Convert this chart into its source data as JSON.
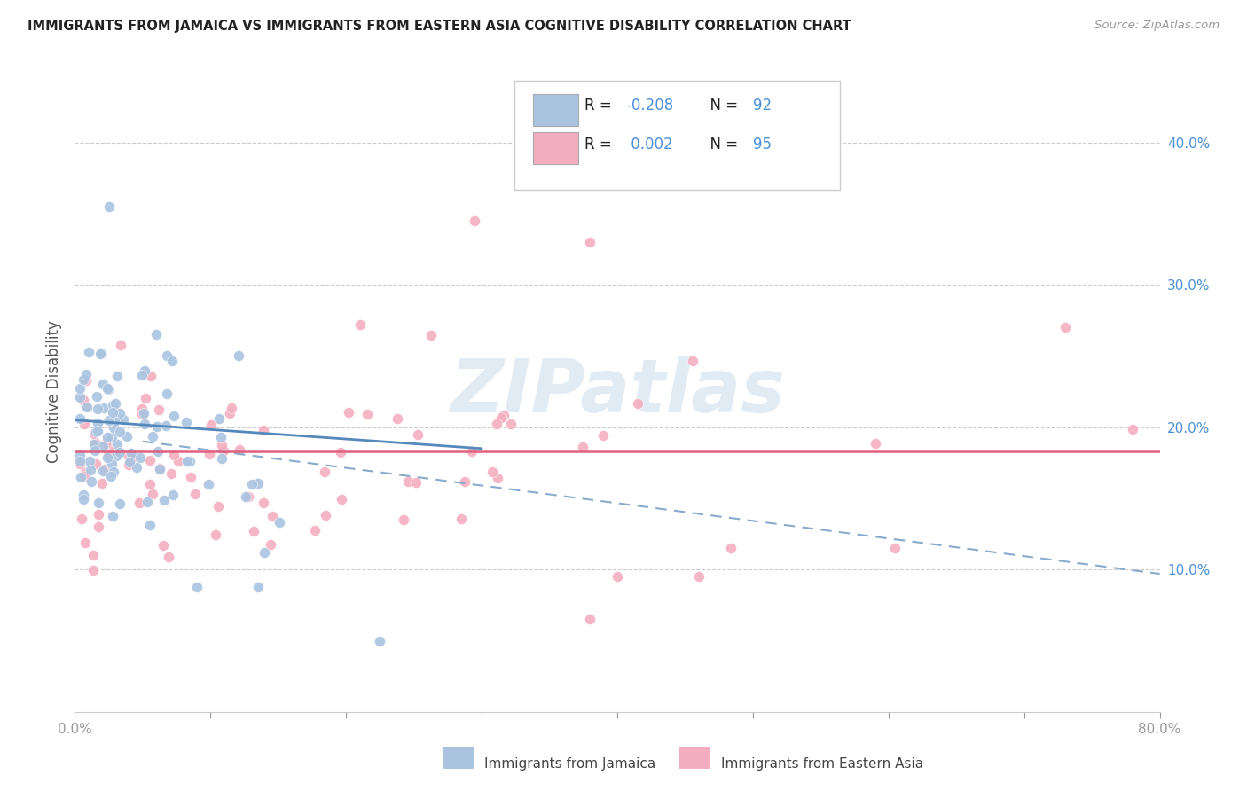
{
  "title": "IMMIGRANTS FROM JAMAICA VS IMMIGRANTS FROM EASTERN ASIA COGNITIVE DISABILITY CORRELATION CHART",
  "source": "Source: ZipAtlas.com",
  "ylabel": "Cognitive Disability",
  "xlim": [
    0.0,
    0.8
  ],
  "ylim": [
    0.0,
    0.45
  ],
  "color_jamaica": "#aac4e0",
  "color_eastern_asia": "#f4aec0",
  "color_jamaica_line": "#5588bb",
  "color_eastern_asia_line": "#e06080",
  "color_dashed_line": "#88aacc",
  "watermark": "ZIPatlas",
  "legend_r1_label": "R = ",
  "legend_r1_val": "-0.208",
  "legend_n1_label": "N = ",
  "legend_n1_val": "92",
  "legend_r2_label": "R =  ",
  "legend_r2_val": "0.002",
  "legend_n2_label": "N = ",
  "legend_n2_val": "95",
  "bottom_label1": "Immigrants from Jamaica",
  "bottom_label2": "Immigrants from Eastern Asia"
}
